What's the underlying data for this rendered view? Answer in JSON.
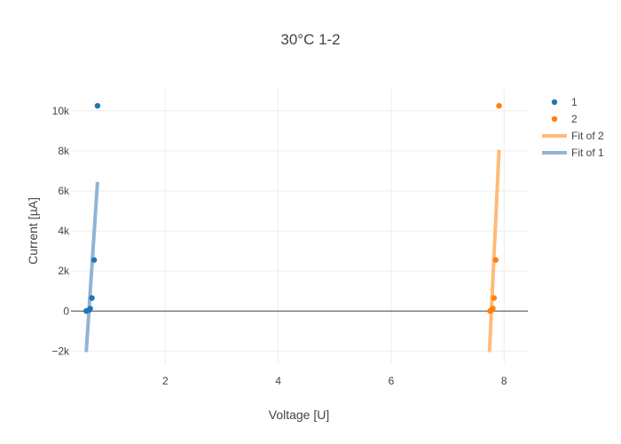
{
  "chart_data": {
    "type": "scatter",
    "title": "30°C 1-2",
    "xlabel": "Voltage [U]",
    "ylabel": "Current [µA]",
    "xlim": [
      0.33,
      8.42
    ],
    "ylim": [
      -2650,
      11100
    ],
    "xticks": [
      {
        "value": 2,
        "label": "2"
      },
      {
        "value": 4,
        "label": "4"
      },
      {
        "value": 6,
        "label": "6"
      },
      {
        "value": 8,
        "label": "8"
      }
    ],
    "yticks": [
      {
        "value": -2000,
        "label": "−2k"
      },
      {
        "value": 0,
        "label": "0"
      },
      {
        "value": 2000,
        "label": "2k"
      },
      {
        "value": 4000,
        "label": "4k"
      },
      {
        "value": 6000,
        "label": "6k"
      },
      {
        "value": 8000,
        "label": "8k"
      },
      {
        "value": 10000,
        "label": "10k"
      }
    ],
    "grid": true,
    "legend_position": "top-right",
    "series": [
      {
        "name": "1",
        "kind": "markers",
        "color": "#1f77b4",
        "points": [
          {
            "x": 0.6,
            "y": 0
          },
          {
            "x": 0.65,
            "y": 50
          },
          {
            "x": 0.67,
            "y": 120
          },
          {
            "x": 0.7,
            "y": 650
          },
          {
            "x": 0.74,
            "y": 2550
          },
          {
            "x": 0.8,
            "y": 10250
          }
        ]
      },
      {
        "name": "2",
        "kind": "markers",
        "color": "#ff7f0e",
        "points": [
          {
            "x": 7.75,
            "y": 0
          },
          {
            "x": 7.78,
            "y": 50
          },
          {
            "x": 7.8,
            "y": 130
          },
          {
            "x": 7.82,
            "y": 650
          },
          {
            "x": 7.85,
            "y": 2550
          },
          {
            "x": 7.91,
            "y": 10250
          }
        ]
      },
      {
        "name": "Fit of 2",
        "kind": "line",
        "color": "#ffbb78",
        "points": [
          {
            "x": 7.74,
            "y": -2050
          },
          {
            "x": 7.91,
            "y": 8050
          }
        ]
      },
      {
        "name": "Fit of 1",
        "kind": "line",
        "color": "#8fb5d6",
        "points": [
          {
            "x": 0.6,
            "y": -2050
          },
          {
            "x": 0.8,
            "y": 6450
          }
        ]
      }
    ]
  }
}
